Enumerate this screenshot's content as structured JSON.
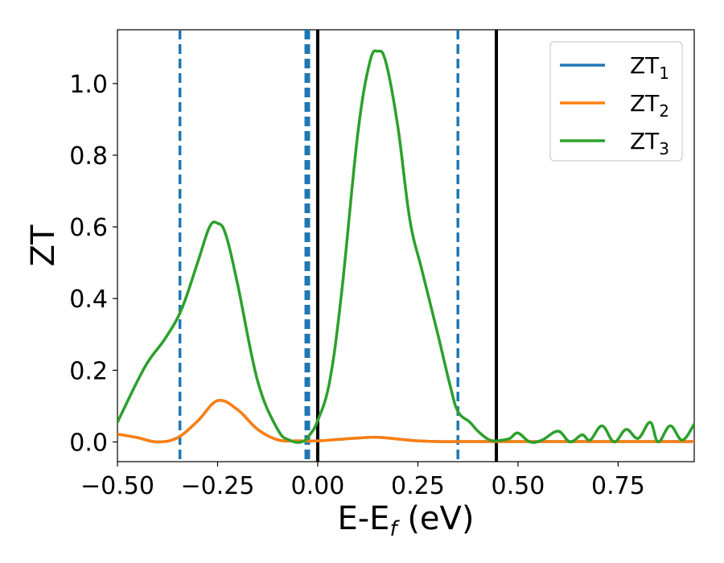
{
  "chart_data": {
    "type": "line",
    "title": "",
    "xlabel": "E-E",
    "xlabel_sub": "f",
    "xlabel_unit": " (eV)",
    "ylabel": "ZT",
    "xlim": [
      -0.5,
      0.94
    ],
    "ylim": [
      -0.055,
      1.15
    ],
    "xticks": [
      -0.5,
      -0.25,
      0.0,
      0.25,
      0.5,
      0.75
    ],
    "xtick_labels": [
      "−0.50",
      "−0.25",
      "0.00",
      "0.25",
      "0.50",
      "0.75"
    ],
    "yticks": [
      0.0,
      0.2,
      0.4,
      0.6,
      0.8,
      1.0
    ],
    "ytick_labels": [
      "0.0",
      "0.2",
      "0.4",
      "0.6",
      "0.8",
      "1.0"
    ],
    "grid": false,
    "legend_position": "top-right",
    "series": [
      {
        "name": "ZT",
        "sub": "1",
        "color": "#1f77b4",
        "x": [
          -0.5,
          -0.45,
          -0.4,
          -0.35,
          -0.3,
          -0.25,
          -0.2,
          -0.15,
          -0.1,
          -0.05,
          0.0,
          0.05,
          0.1,
          0.15,
          0.2,
          0.25,
          0.3,
          0.35,
          0.4,
          0.45,
          0.5,
          0.55,
          0.6,
          0.65,
          0.7,
          0.75,
          0.8,
          0.85,
          0.9,
          0.94
        ],
        "y": [
          0.022,
          0.012,
          0.0,
          0.012,
          0.058,
          0.115,
          0.09,
          0.035,
          0.006,
          0.003,
          0.003,
          0.007,
          0.011,
          0.013,
          0.008,
          0.003,
          0.001,
          0.001,
          0.001,
          0.001,
          0.001,
          0.001,
          0.001,
          0.001,
          0.001,
          0.001,
          0.001,
          0.001,
          0.001,
          0.001
        ]
      },
      {
        "name": "ZT",
        "sub": "2",
        "color": "#ff7f0e",
        "x": [
          -0.5,
          -0.45,
          -0.4,
          -0.35,
          -0.3,
          -0.25,
          -0.2,
          -0.15,
          -0.1,
          -0.05,
          0.0,
          0.05,
          0.1,
          0.15,
          0.2,
          0.25,
          0.3,
          0.35,
          0.4,
          0.45,
          0.5,
          0.55,
          0.6,
          0.65,
          0.7,
          0.75,
          0.8,
          0.85,
          0.9,
          0.94
        ],
        "y": [
          0.022,
          0.012,
          0.0,
          0.012,
          0.058,
          0.115,
          0.09,
          0.035,
          0.006,
          0.003,
          0.003,
          0.007,
          0.011,
          0.013,
          0.008,
          0.003,
          0.001,
          0.001,
          0.001,
          0.001,
          0.001,
          0.001,
          0.001,
          0.001,
          0.001,
          0.001,
          0.001,
          0.001,
          0.001,
          0.001
        ]
      },
      {
        "name": "ZT",
        "sub": "3",
        "color": "#2ca02c",
        "x": [
          -0.5,
          -0.45,
          -0.42,
          -0.38,
          -0.34,
          -0.3,
          -0.27,
          -0.25,
          -0.23,
          -0.2,
          -0.15,
          -0.1,
          -0.07,
          -0.04,
          -0.02,
          0.0,
          0.03,
          0.06,
          0.1,
          0.13,
          0.15,
          0.17,
          0.2,
          0.23,
          0.26,
          0.3,
          0.33,
          0.35,
          0.38,
          0.4,
          0.43,
          0.46,
          0.48,
          0.5,
          0.53,
          0.56,
          0.6,
          0.63,
          0.66,
          0.68,
          0.71,
          0.74,
          0.77,
          0.8,
          0.83,
          0.85,
          0.88,
          0.91,
          0.94
        ],
        "y": [
          0.055,
          0.17,
          0.23,
          0.29,
          0.37,
          0.5,
          0.6,
          0.61,
          0.58,
          0.44,
          0.17,
          0.035,
          0.005,
          0.0,
          0.02,
          0.06,
          0.17,
          0.42,
          0.86,
          1.06,
          1.09,
          1.06,
          0.88,
          0.62,
          0.48,
          0.3,
          0.16,
          0.085,
          0.055,
          0.03,
          0.005,
          0.005,
          0.01,
          0.025,
          0.0,
          0.005,
          0.03,
          0.0,
          0.02,
          0.005,
          0.045,
          0.0,
          0.035,
          0.01,
          0.055,
          0.0,
          0.045,
          0.005,
          0.05
        ]
      }
    ],
    "vlines": [
      {
        "x": -0.344,
        "style": "dashed",
        "color": "#1f77b4",
        "width": 3.5
      },
      {
        "x": -0.026,
        "style": "dashed",
        "color": "#1f77b4",
        "width": 7
      },
      {
        "x": 0.0,
        "style": "solid",
        "color": "#000000",
        "width": 4
      },
      {
        "x": 0.35,
        "style": "dashed",
        "color": "#1f77b4",
        "width": 3.5
      },
      {
        "x": 0.446,
        "style": "solid",
        "color": "#000000",
        "width": 4
      }
    ]
  }
}
